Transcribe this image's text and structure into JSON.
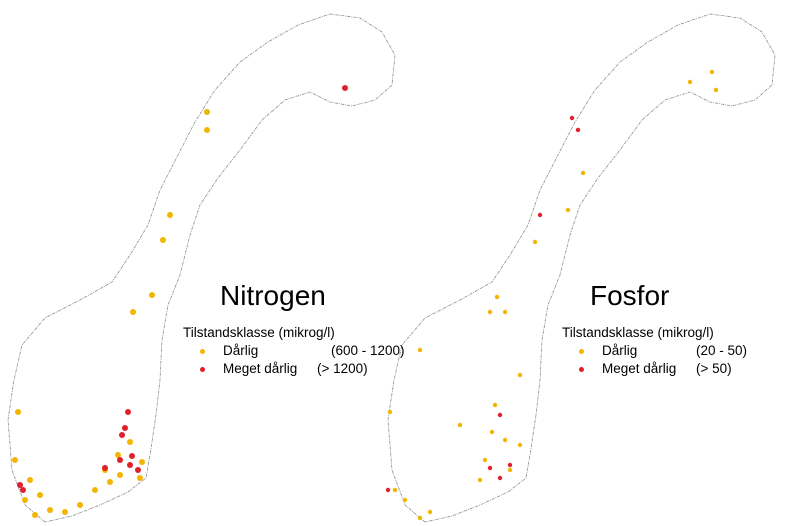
{
  "maps": [
    {
      "title": "Nitrogen",
      "legend": {
        "heading": "Tilstandsklasse (mikrog/l)",
        "items": [
          {
            "label": "Dårlig",
            "range": "(600 - 1200)",
            "color": "#f2b600"
          },
          {
            "label": "Meget dårlig",
            "range": "(> 1200)",
            "color": "#e0202a"
          }
        ]
      }
    },
    {
      "title": "Fosfor",
      "legend": {
        "heading": "Tilstandsklasse (mikrog/l)",
        "items": [
          {
            "label": "Dårlig",
            "range": "(20 - 50)",
            "color": "#f2b600"
          },
          {
            "label": "Meget dårlig",
            "range": "(> 50)",
            "color": "#e0202a"
          }
        ]
      }
    }
  ]
}
